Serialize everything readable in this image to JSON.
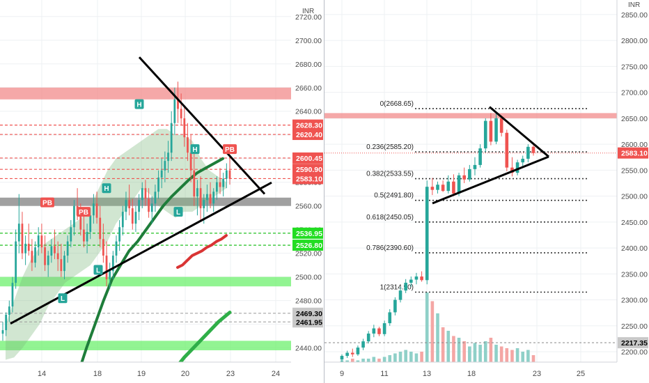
{
  "currency": "INR",
  "colors": {
    "up": "#26a69a",
    "down": "#ef5350",
    "resistance_zone": "#f28b8b",
    "support_zone": "#6ef06e",
    "gray_zone": "#8f8f8f",
    "trendline": "#000000",
    "fib_line": "#333333",
    "price_tag": "#ef5350",
    "green_tag": "#22dd22",
    "gray_tag": "#c8c8c8"
  },
  "chart_data": [
    {
      "type": "candlestick",
      "name": "left-intraday",
      "x_ticks": [
        "14",
        "18",
        "19",
        "20",
        "23",
        "24"
      ],
      "y_ticks": [
        "2440.00",
        "2460.00",
        "2480.00",
        "2500.00",
        "2520.00",
        "2540.00",
        "2560.00",
        "2580.00",
        "2600.00",
        "2620.00",
        "2640.00",
        "2660.00",
        "2680.00",
        "2700.00",
        "2720.00"
      ],
      "ylim": [
        2428,
        2734
      ],
      "candles": [
        [
          2452,
          2462,
          2446,
          2455
        ],
        [
          2455,
          2470,
          2450,
          2468
        ],
        [
          2468,
          2480,
          2462,
          2475
        ],
        [
          2475,
          2500,
          2470,
          2495
        ],
        [
          2495,
          2540,
          2490,
          2530
        ],
        [
          2530,
          2570,
          2520,
          2545
        ],
        [
          2545,
          2555,
          2515,
          2520
        ],
        [
          2520,
          2535,
          2510,
          2528
        ],
        [
          2528,
          2545,
          2518,
          2522
        ],
        [
          2522,
          2532,
          2505,
          2512
        ],
        [
          2512,
          2530,
          2508,
          2525
        ],
        [
          2525,
          2542,
          2518,
          2535
        ],
        [
          2535,
          2545,
          2520,
          2525
        ],
        [
          2525,
          2535,
          2505,
          2510
        ],
        [
          2510,
          2522,
          2500,
          2518
        ],
        [
          2518,
          2532,
          2512,
          2526
        ],
        [
          2526,
          2540,
          2515,
          2520
        ],
        [
          2520,
          2530,
          2505,
          2515
        ],
        [
          2515,
          2528,
          2500,
          2505
        ],
        [
          2505,
          2522,
          2498,
          2518
        ],
        [
          2518,
          2535,
          2512,
          2530
        ],
        [
          2530,
          2548,
          2525,
          2542
        ],
        [
          2542,
          2565,
          2535,
          2560
        ],
        [
          2560,
          2575,
          2548,
          2552
        ],
        [
          2552,
          2562,
          2535,
          2540
        ],
        [
          2540,
          2552,
          2525,
          2530
        ],
        [
          2530,
          2545,
          2520,
          2538
        ],
        [
          2538,
          2558,
          2532,
          2552
        ],
        [
          2552,
          2570,
          2545,
          2562
        ],
        [
          2562,
          2572,
          2545,
          2550
        ],
        [
          2550,
          2560,
          2525,
          2532
        ],
        [
          2532,
          2545,
          2512,
          2518
        ],
        [
          2518,
          2530,
          2492,
          2498
        ],
        [
          2498,
          2512,
          2490,
          2505
        ],
        [
          2505,
          2522,
          2498,
          2518
        ],
        [
          2518,
          2535,
          2512,
          2530
        ],
        [
          2530,
          2548,
          2522,
          2542
        ],
        [
          2542,
          2560,
          2535,
          2555
        ],
        [
          2555,
          2572,
          2548,
          2565
        ],
        [
          2565,
          2578,
          2552,
          2558
        ],
        [
          2558,
          2566,
          2540,
          2545
        ],
        [
          2545,
          2560,
          2538,
          2555
        ],
        [
          2555,
          2570,
          2548,
          2565
        ],
        [
          2565,
          2580,
          2558,
          2575
        ],
        [
          2575,
          2582,
          2560,
          2566
        ],
        [
          2566,
          2575,
          2550,
          2555
        ],
        [
          2555,
          2568,
          2545,
          2562
        ],
        [
          2562,
          2578,
          2555,
          2572
        ],
        [
          2572,
          2590,
          2566,
          2584
        ],
        [
          2584,
          2600,
          2575,
          2590
        ],
        [
          2590,
          2606,
          2580,
          2598
        ],
        [
          2598,
          2615,
          2588,
          2605
        ],
        [
          2605,
          2640,
          2598,
          2630
        ],
        [
          2630,
          2660,
          2620,
          2650
        ],
        [
          2650,
          2665,
          2630,
          2642
        ],
        [
          2642,
          2655,
          2628,
          2634
        ],
        [
          2634,
          2645,
          2610,
          2618
        ],
        [
          2618,
          2630,
          2598,
          2605
        ],
        [
          2605,
          2620,
          2580,
          2590
        ],
        [
          2590,
          2605,
          2560,
          2568
        ],
        [
          2568,
          2582,
          2552,
          2575
        ],
        [
          2575,
          2585,
          2548,
          2558
        ],
        [
          2558,
          2570,
          2545,
          2565
        ],
        [
          2565,
          2578,
          2555,
          2570
        ],
        [
          2570,
          2580,
          2558,
          2562
        ],
        [
          2562,
          2575,
          2555,
          2572
        ],
        [
          2572,
          2585,
          2565,
          2580
        ],
        [
          2580,
          2592,
          2570,
          2576
        ],
        [
          2576,
          2588,
          2568,
          2583
        ],
        [
          2583,
          2596,
          2575,
          2590
        ],
        [
          2590,
          2602,
          2578,
          2583
        ]
      ],
      "ribbon_upper": [
        2460,
        2480,
        2500,
        2515,
        2525,
        2530,
        2535,
        2540,
        2545,
        2550,
        2560,
        2575,
        2590,
        2600,
        2605,
        2610,
        2615,
        2620,
        2625,
        2625,
        2620,
        2620,
        2615,
        2600,
        2590,
        2585,
        2580
      ],
      "ribbon_lower": [
        2430,
        2432,
        2440,
        2450,
        2460,
        2475,
        2485,
        2495,
        2500,
        2505,
        2510,
        2520,
        2530,
        2545,
        2555,
        2565,
        2575,
        2570,
        2560,
        2555,
        2550,
        2555,
        2555,
        2560,
        2565,
        2570,
        2575
      ],
      "red_ma": [
        2508,
        2510,
        2514,
        2518,
        2520,
        2522,
        2525,
        2527,
        2530,
        2532,
        2535
      ],
      "green_ma_1": [
        2418,
        2440,
        2460,
        2480,
        2498,
        2510,
        2522,
        2530,
        2540,
        2550,
        2560,
        2568,
        2575,
        2582,
        2588,
        2592,
        2596,
        2600
      ],
      "green_ma_2": [
        2410,
        2420,
        2432,
        2442,
        2452,
        2462,
        2470
      ],
      "zones": [
        {
          "color": "resistance",
          "from": 2650,
          "to": 2660
        },
        {
          "color": "gray",
          "from": 2560,
          "to": 2567
        },
        {
          "color": "support",
          "from": 2492,
          "to": 2500
        },
        {
          "color": "support",
          "from": 2438,
          "to": 2446
        }
      ],
      "red_dashed_levels": [
        2628.3,
        2620.4,
        2600.45,
        2590.9,
        2583.1
      ],
      "green_dashed_levels": [
        2536.95,
        2526.8
      ],
      "gray_dashed_levels": [
        2469.3,
        2461.95
      ],
      "price_tags": [
        {
          "label": "2628.30",
          "value": 2628.3,
          "style": "red"
        },
        {
          "label": "2620.40",
          "value": 2620.4,
          "style": "red"
        },
        {
          "label": "2600.45",
          "value": 2600.45,
          "style": "red"
        },
        {
          "label": "2590.90",
          "value": 2590.9,
          "style": "red"
        },
        {
          "label": "2583.10",
          "value": 2583.1,
          "style": "red"
        },
        {
          "label": "2536.95",
          "value": 2536.95,
          "style": "green"
        },
        {
          "label": "2526.80",
          "value": 2526.8,
          "style": "green"
        },
        {
          "label": "2469.30",
          "value": 2469.3,
          "style": "gray"
        },
        {
          "label": "2461.95",
          "value": 2461.95,
          "style": "gray"
        }
      ],
      "markers": [
        {
          "label": "PB",
          "color": "down",
          "value": 2563
        },
        {
          "label": "PB",
          "color": "down",
          "value": 2555
        },
        {
          "label": "H",
          "color": "up",
          "value": 2575
        },
        {
          "label": "H",
          "color": "up",
          "value": 2646
        },
        {
          "label": "H",
          "color": "up",
          "value": 2608
        },
        {
          "label": "PB",
          "color": "down",
          "value": 2608
        },
        {
          "label": "L",
          "color": "up",
          "value": 2555
        },
        {
          "label": "L",
          "color": "up",
          "value": 2506
        },
        {
          "label": "L",
          "color": "up",
          "value": 2482
        }
      ],
      "trendlines": [
        {
          "from": [
            2668
          ],
          "to": [
            2576
          ]
        },
        {
          "from": [
            2480
          ],
          "to": [
            2575
          ]
        }
      ]
    },
    {
      "type": "candlestick",
      "name": "right-daily",
      "x_ticks": [
        "9",
        "11",
        "13",
        "18",
        "23",
        "25"
      ],
      "y_ticks": [
        "2200.00",
        "2250.00",
        "2300.00",
        "2350.00",
        "2400.00",
        "2450.00",
        "2500.00",
        "2550.00",
        "2600.00",
        "2650.00",
        "2700.00",
        "2750.00",
        "2800.00",
        "2850.00"
      ],
      "ylim": [
        2180,
        2878
      ],
      "candles": [
        [
          2185,
          2195,
          2180,
          2192
        ],
        [
          2192,
          2202,
          2188,
          2198
        ],
        [
          2198,
          2206,
          2190,
          2195
        ],
        [
          2195,
          2212,
          2192,
          2208
        ],
        [
          2208,
          2225,
          2203,
          2220
        ],
        [
          2220,
          2240,
          2216,
          2235
        ],
        [
          2235,
          2252,
          2228,
          2245
        ],
        [
          2245,
          2248,
          2230,
          2234
        ],
        [
          2234,
          2260,
          2230,
          2255
        ],
        [
          2255,
          2282,
          2250,
          2276
        ],
        [
          2276,
          2305,
          2270,
          2300
        ],
        [
          2300,
          2325,
          2295,
          2318
        ],
        [
          2318,
          2340,
          2313,
          2333
        ],
        [
          2333,
          2345,
          2325,
          2339
        ],
        [
          2339,
          2352,
          2330,
          2345
        ],
        [
          2345,
          2355,
          2335,
          2338
        ],
        [
          2338,
          2530,
          2330,
          2518
        ],
        [
          2518,
          2535,
          2502,
          2512
        ],
        [
          2512,
          2528,
          2505,
          2522
        ],
        [
          2522,
          2530,
          2508,
          2510
        ],
        [
          2510,
          2540,
          2505,
          2528
        ],
        [
          2528,
          2542,
          2500,
          2505
        ],
        [
          2505,
          2545,
          2500,
          2540
        ],
        [
          2540,
          2555,
          2525,
          2532
        ],
        [
          2532,
          2560,
          2528,
          2552
        ],
        [
          2552,
          2575,
          2540,
          2560
        ],
        [
          2560,
          2600,
          2555,
          2592
        ],
        [
          2592,
          2650,
          2585,
          2645
        ],
        [
          2645,
          2660,
          2598,
          2605
        ],
        [
          2605,
          2660,
          2600,
          2650
        ],
        [
          2650,
          2655,
          2615,
          2622
        ],
        [
          2622,
          2628,
          2548,
          2555
        ],
        [
          2555,
          2575,
          2538,
          2545
        ],
        [
          2545,
          2570,
          2540,
          2565
        ],
        [
          2565,
          2578,
          2558,
          2572
        ],
        [
          2572,
          2600,
          2565,
          2595
        ],
        [
          2595,
          2598,
          2578,
          2583
        ]
      ],
      "volumes": [
        1,
        1,
        2,
        1,
        2,
        2,
        3,
        2,
        3,
        4,
        5,
        6,
        7,
        6,
        5,
        6,
        40,
        35,
        28,
        20,
        18,
        15,
        14,
        12,
        9,
        11,
        10,
        12,
        14,
        10,
        9,
        8,
        7,
        8,
        6,
        7,
        4
      ],
      "volume_colors": [
        "up",
        "up",
        "down",
        "up",
        "up",
        "up",
        "up",
        "down",
        "up",
        "up",
        "up",
        "up",
        "up",
        "up",
        "up",
        "down",
        "up",
        "down",
        "up",
        "down",
        "up",
        "down",
        "up",
        "down",
        "up",
        "up",
        "up",
        "up",
        "down",
        "up",
        "down",
        "down",
        "down",
        "up",
        "up",
        "up",
        "down"
      ],
      "zones": [
        {
          "color": "resistance",
          "from": 2650,
          "to": 2660
        }
      ],
      "fib_levels": [
        {
          "label": "0(2668.65)",
          "value": 2668.65
        },
        {
          "label": "0.236(2585.20)",
          "value": 2585.2
        },
        {
          "label": "0.382(2533.55)",
          "value": 2533.55
        },
        {
          "label": "0.5(2491.80)",
          "value": 2491.8
        },
        {
          "label": "0.618(2450.05)",
          "value": 2450.05
        },
        {
          "label": "0.786(2390.60)",
          "value": 2390.6
        },
        {
          "label": "1(2314.90)",
          "value": 2314.9
        }
      ],
      "price_tags": [
        {
          "label": "2583.10",
          "value": 2583.1,
          "style": "red"
        },
        {
          "label": "2217.35",
          "value": 2217.35,
          "style": "gray"
        }
      ],
      "trendlines": [
        {
          "from": [
            2668
          ],
          "to": [
            2575
          ]
        },
        {
          "from": [
            2490
          ],
          "to": [
            2575
          ]
        }
      ]
    }
  ]
}
